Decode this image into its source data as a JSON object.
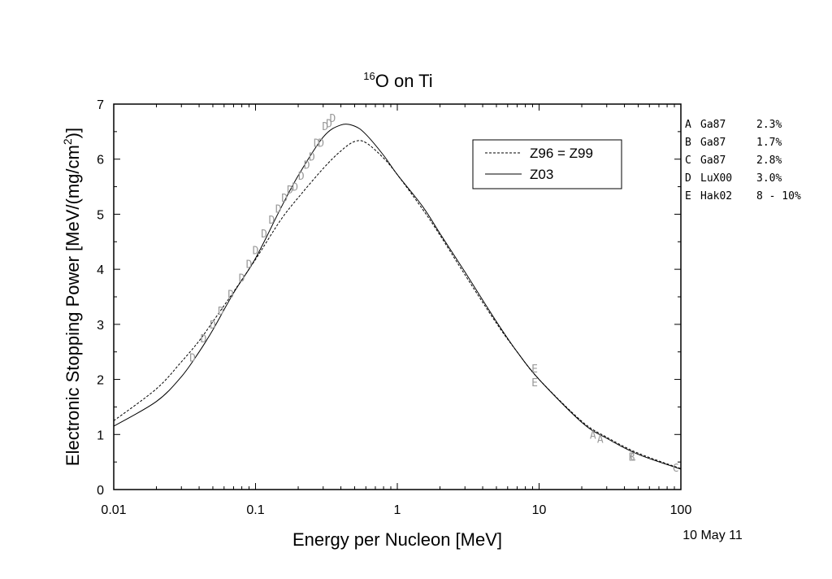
{
  "chart_data": {
    "type": "line",
    "title": {
      "sup": "16",
      "main": "O on Ti"
    },
    "xlabel": "Energy per Nucleon [MeV]",
    "ylabel": {
      "main": "Electronic Stopping Power [MeV/(mg/cm",
      "sup": "2",
      "end": ")]"
    },
    "xscale": "log",
    "xlim": [
      0.01,
      100
    ],
    "ylim": [
      0,
      7
    ],
    "x_ticks": [
      {
        "value": 0.01,
        "label": "0.01"
      },
      {
        "value": 0.1,
        "label": "0.1"
      },
      {
        "value": 1,
        "label": "1"
      },
      {
        "value": 10,
        "label": "10"
      },
      {
        "value": 100,
        "label": "100"
      }
    ],
    "y_ticks": [
      {
        "value": 0,
        "label": "0"
      },
      {
        "value": 1,
        "label": "1"
      },
      {
        "value": 2,
        "label": "2"
      },
      {
        "value": 3,
        "label": "3"
      },
      {
        "value": 4,
        "label": "4"
      },
      {
        "value": 5,
        "label": "5"
      },
      {
        "value": 6,
        "label": "6"
      },
      {
        "value": 7,
        "label": "7"
      }
    ],
    "legend_position": "top-right",
    "series": [
      {
        "name": "Z96 = Z99",
        "style": "dashed",
        "x": [
          0.01,
          0.02,
          0.03,
          0.04,
          0.05,
          0.07,
          0.1,
          0.15,
          0.2,
          0.3,
          0.4,
          0.5,
          0.6,
          0.8,
          1,
          1.5,
          2,
          3,
          5,
          7,
          10,
          20,
          30,
          50,
          100
        ],
        "y": [
          1.25,
          1.83,
          2.32,
          2.7,
          3.05,
          3.59,
          4.18,
          4.89,
          5.3,
          5.83,
          6.15,
          6.32,
          6.3,
          6.02,
          5.72,
          5.1,
          4.62,
          3.9,
          3.02,
          2.5,
          2.0,
          1.24,
          0.95,
          0.66,
          0.38
        ]
      },
      {
        "name": "Z03",
        "style": "solid",
        "x": [
          0.01,
          0.02,
          0.03,
          0.04,
          0.05,
          0.07,
          0.1,
          0.15,
          0.2,
          0.3,
          0.4,
          0.5,
          0.6,
          0.8,
          1,
          1.5,
          2,
          3,
          5,
          7,
          10,
          20,
          30,
          50,
          100
        ],
        "y": [
          1.15,
          1.6,
          2.05,
          2.5,
          2.9,
          3.57,
          4.2,
          5.1,
          5.7,
          6.4,
          6.62,
          6.6,
          6.45,
          6.07,
          5.72,
          5.15,
          4.65,
          3.95,
          3.05,
          2.5,
          2.0,
          1.22,
          0.93,
          0.64,
          0.37
        ]
      }
    ],
    "measurements": [
      {
        "label": "D",
        "x": 0.036,
        "y": 2.4
      },
      {
        "label": "D",
        "x": 0.043,
        "y": 2.75
      },
      {
        "label": "D",
        "x": 0.05,
        "y": 3.0
      },
      {
        "label": "D",
        "x": 0.057,
        "y": 3.25
      },
      {
        "label": "D",
        "x": 0.067,
        "y": 3.55
      },
      {
        "label": "D",
        "x": 0.08,
        "y": 3.85
      },
      {
        "label": "D",
        "x": 0.09,
        "y": 4.1
      },
      {
        "label": "D",
        "x": 0.1,
        "y": 4.35
      },
      {
        "label": "D",
        "x": 0.115,
        "y": 4.65
      },
      {
        "label": "D",
        "x": 0.13,
        "y": 4.9
      },
      {
        "label": "D",
        "x": 0.145,
        "y": 5.1
      },
      {
        "label": "D",
        "x": 0.16,
        "y": 5.3
      },
      {
        "label": "D",
        "x": 0.175,
        "y": 5.45
      },
      {
        "label": "D",
        "x": 0.19,
        "y": 5.5
      },
      {
        "label": "D",
        "x": 0.21,
        "y": 5.7
      },
      {
        "label": "D",
        "x": 0.23,
        "y": 5.9
      },
      {
        "label": "D",
        "x": 0.25,
        "y": 6.05
      },
      {
        "label": "D",
        "x": 0.27,
        "y": 6.3
      },
      {
        "label": "D",
        "x": 0.29,
        "y": 6.3
      },
      {
        "label": "D",
        "x": 0.31,
        "y": 6.6
      },
      {
        "label": "D",
        "x": 0.33,
        "y": 6.65
      },
      {
        "label": "D",
        "x": 0.35,
        "y": 6.75
      },
      {
        "label": "E",
        "x": 9.3,
        "y": 2.2
      },
      {
        "label": "E",
        "x": 9.3,
        "y": 1.95
      },
      {
        "label": "A",
        "x": 24,
        "y": 1.0
      },
      {
        "label": "A",
        "x": 27,
        "y": 0.92
      },
      {
        "label": "B",
        "x": 45,
        "y": 0.6
      },
      {
        "label": "C",
        "x": 46,
        "y": 0.6
      },
      {
        "label": "C",
        "x": 92,
        "y": 0.4
      }
    ]
  },
  "references": [
    {
      "code": "A",
      "source": "Ga87",
      "error": "2.3%"
    },
    {
      "code": "B",
      "source": "Ga87",
      "error": "1.7%"
    },
    {
      "code": "C",
      "source": "Ga87",
      "error": "2.8%"
    },
    {
      "code": "D",
      "source": "LuX00",
      "error": "3.0%"
    },
    {
      "code": "E",
      "source": "Hak02",
      "error": "8 - 10%"
    }
  ],
  "date_label": "10 May 11"
}
